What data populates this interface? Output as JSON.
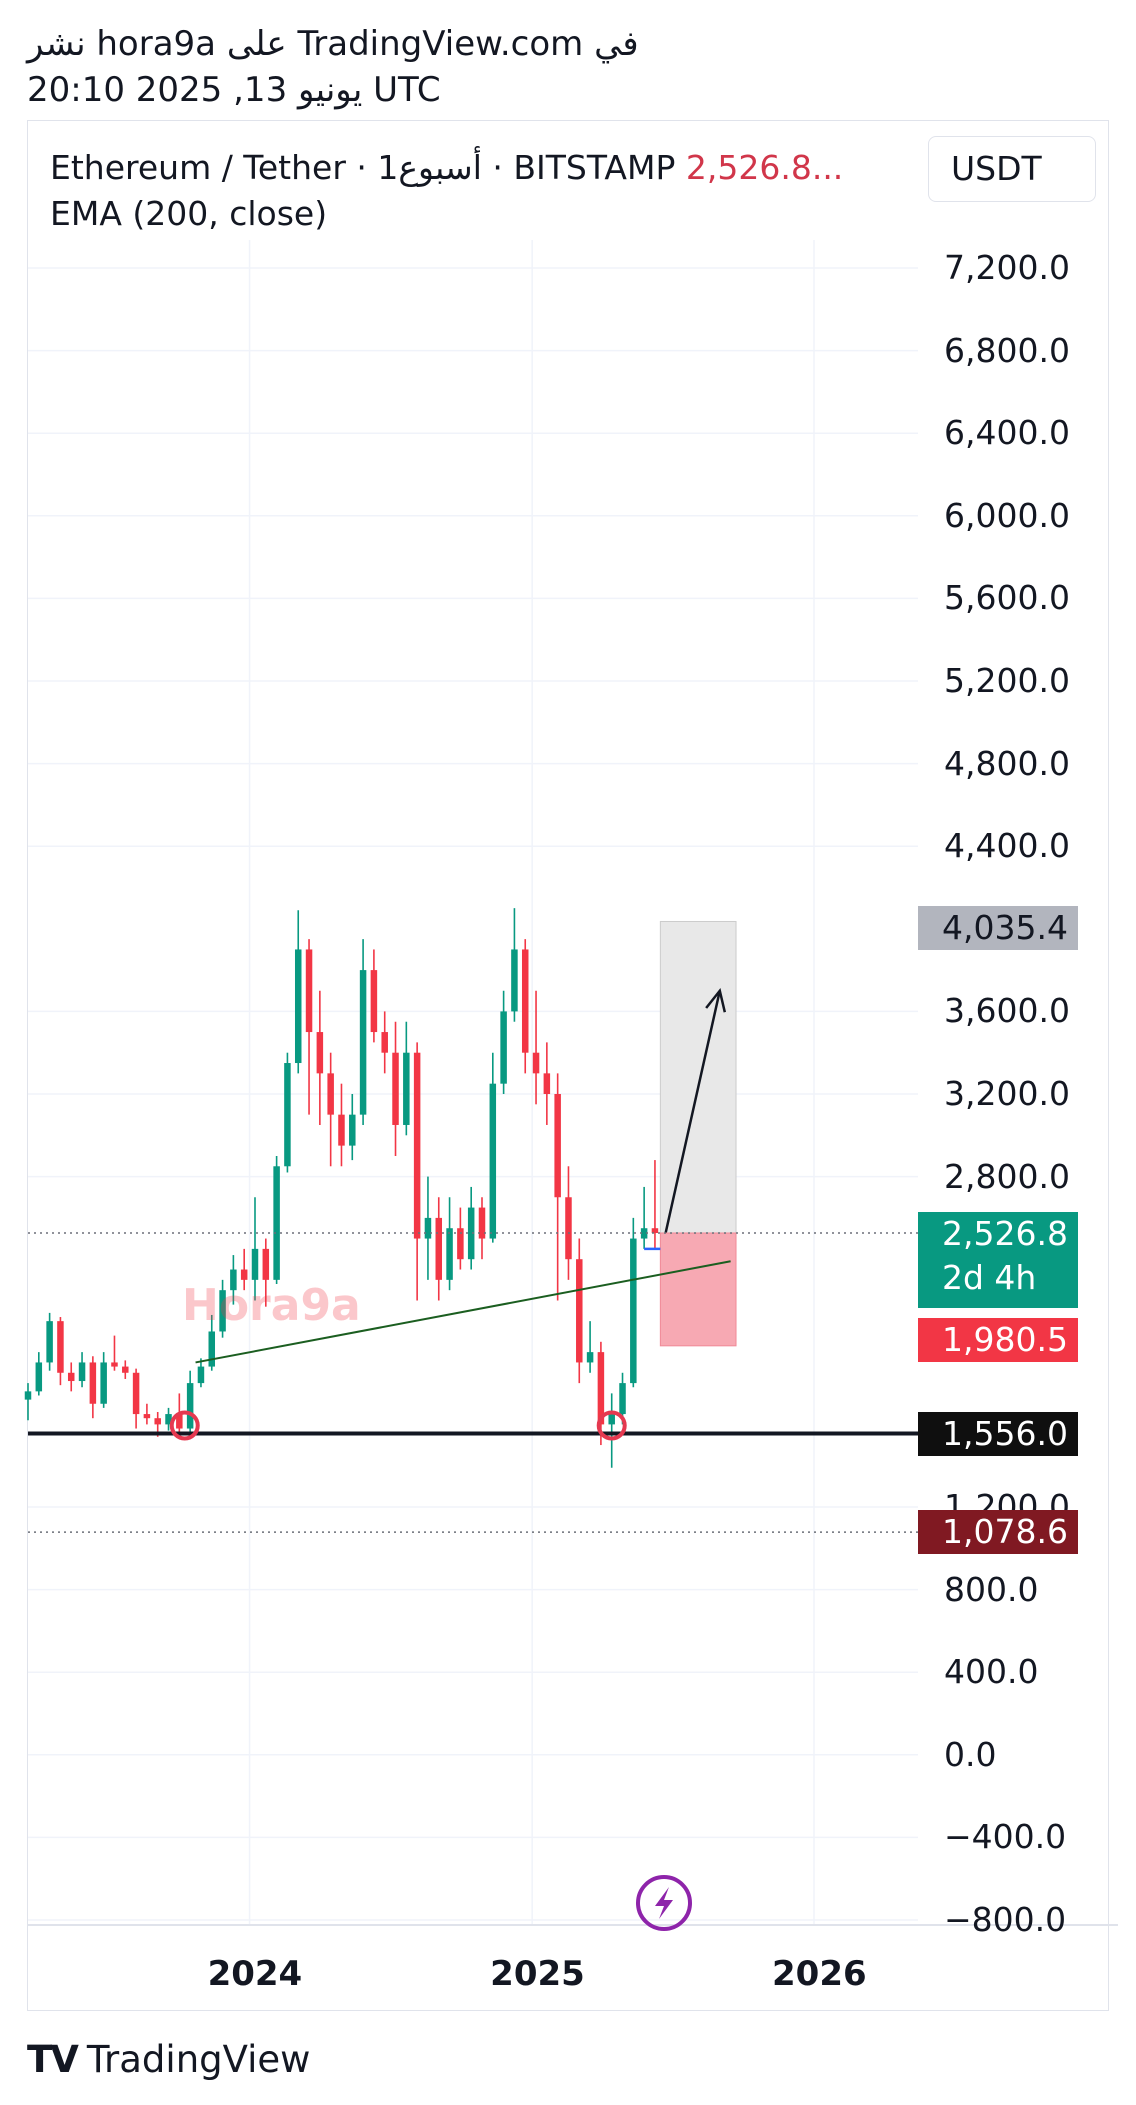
{
  "header": {
    "line1": "نشر hora9a على TradingView.com في",
    "line2": "20:10 2025 ,13 يونيو UTC"
  },
  "legend": {
    "symbol": "Ethereum / Tether · 1أسبوع · BITSTAMP",
    "price": "2,526.8...",
    "indicator": "EMA (200, close)"
  },
  "unit_selector": "USDT",
  "watermark": "Hora9a",
  "badges": {
    "target": "4,035.4",
    "current_price": "2,526.8",
    "countdown": "2d 4h",
    "stop": "1,980.5",
    "support": "1,556.0",
    "low_line": "1,078.6"
  },
  "branding": {
    "logo_mark": "TV",
    "logo_text": "TradingView"
  },
  "colors": {
    "bull": "#089981",
    "bear": "#f23645",
    "support_line": "#131722",
    "trend_line": "#1b5e20",
    "target_zone": "#e8e8e8",
    "stop_zone": "#f7a9b3",
    "ema": "#2962ff",
    "arrow": "#131722",
    "lightning": "#8e24aa"
  },
  "chart_data": {
    "type": "candlestick",
    "timeframe": "1W",
    "exchange": "BITSTAMP",
    "y_axis": {
      "ticks": [
        7200,
        6800,
        6400,
        6000,
        5600,
        5200,
        4800,
        4400,
        3600,
        3200,
        2800,
        1200,
        800,
        400,
        0,
        -400,
        -800
      ],
      "tick_labels": [
        "7,200.0",
        "6,800.0",
        "6,400.0",
        "6,000.0",
        "5,600.0",
        "5,200.0",
        "4,800.0",
        "4,400.0",
        "3,600.0",
        "3,200.0",
        "2,800.0",
        "1,200.0",
        "800.0",
        "400.0",
        "0.0",
        "−400.0",
        "−800.0"
      ],
      "range": [
        -800,
        7400
      ]
    },
    "x_axis": {
      "ticks": [
        "2024-01-01",
        "2025-01-01",
        "2026-01-01"
      ],
      "tick_labels": [
        "2024",
        "2025",
        "2026"
      ],
      "range": [
        "2023-03-20",
        "2026-07-01"
      ]
    },
    "candles": [
      {
        "t": "2023-03-20",
        "o": 1720,
        "h": 1800,
        "l": 1620,
        "c": 1760
      },
      {
        "t": "2023-04-03",
        "o": 1760,
        "h": 1950,
        "l": 1740,
        "c": 1900
      },
      {
        "t": "2023-04-17",
        "o": 1900,
        "h": 2140,
        "l": 1860,
        "c": 2100
      },
      {
        "t": "2023-05-01",
        "o": 2100,
        "h": 2120,
        "l": 1790,
        "c": 1850
      },
      {
        "t": "2023-05-15",
        "o": 1850,
        "h": 1900,
        "l": 1760,
        "c": 1810
      },
      {
        "t": "2023-05-29",
        "o": 1810,
        "h": 1950,
        "l": 1780,
        "c": 1900
      },
      {
        "t": "2023-06-12",
        "o": 1900,
        "h": 1930,
        "l": 1630,
        "c": 1700
      },
      {
        "t": "2023-06-26",
        "o": 1700,
        "h": 1950,
        "l": 1680,
        "c": 1900
      },
      {
        "t": "2023-07-10",
        "o": 1900,
        "h": 2030,
        "l": 1860,
        "c": 1880
      },
      {
        "t": "2023-07-24",
        "o": 1880,
        "h": 1910,
        "l": 1820,
        "c": 1850
      },
      {
        "t": "2023-08-07",
        "o": 1850,
        "h": 1870,
        "l": 1580,
        "c": 1650
      },
      {
        "t": "2023-08-21",
        "o": 1650,
        "h": 1700,
        "l": 1600,
        "c": 1630
      },
      {
        "t": "2023-09-04",
        "o": 1630,
        "h": 1660,
        "l": 1540,
        "c": 1600
      },
      {
        "t": "2023-09-18",
        "o": 1600,
        "h": 1680,
        "l": 1570,
        "c": 1650
      },
      {
        "t": "2023-10-02",
        "o": 1650,
        "h": 1750,
        "l": 1560,
        "c": 1580
      },
      {
        "t": "2023-10-16",
        "o": 1580,
        "h": 1860,
        "l": 1560,
        "c": 1800
      },
      {
        "t": "2023-10-30",
        "o": 1800,
        "h": 1920,
        "l": 1780,
        "c": 1880
      },
      {
        "t": "2023-11-13",
        "o": 1880,
        "h": 2130,
        "l": 1860,
        "c": 2050
      },
      {
        "t": "2023-11-27",
        "o": 2050,
        "h": 2300,
        "l": 2020,
        "c": 2250
      },
      {
        "t": "2023-12-11",
        "o": 2250,
        "h": 2420,
        "l": 2180,
        "c": 2350
      },
      {
        "t": "2023-12-25",
        "o": 2350,
        "h": 2450,
        "l": 2250,
        "c": 2300
      },
      {
        "t": "2024-01-08",
        "o": 2300,
        "h": 2700,
        "l": 2200,
        "c": 2450
      },
      {
        "t": "2024-01-22",
        "o": 2450,
        "h": 2500,
        "l": 2170,
        "c": 2300
      },
      {
        "t": "2024-02-05",
        "o": 2300,
        "h": 2900,
        "l": 2280,
        "c": 2850
      },
      {
        "t": "2024-02-19",
        "o": 2850,
        "h": 3400,
        "l": 2820,
        "c": 3350
      },
      {
        "t": "2024-03-04",
        "o": 3350,
        "h": 4090,
        "l": 3300,
        "c": 3900
      },
      {
        "t": "2024-03-18",
        "o": 3900,
        "h": 3950,
        "l": 3100,
        "c": 3500
      },
      {
        "t": "2024-04-01",
        "o": 3500,
        "h": 3700,
        "l": 3050,
        "c": 3300
      },
      {
        "t": "2024-04-15",
        "o": 3300,
        "h": 3400,
        "l": 2850,
        "c": 3100
      },
      {
        "t": "2024-04-29",
        "o": 3100,
        "h": 3250,
        "l": 2850,
        "c": 2950
      },
      {
        "t": "2024-05-13",
        "o": 2950,
        "h": 3200,
        "l": 2880,
        "c": 3100
      },
      {
        "t": "2024-05-27",
        "o": 3100,
        "h": 3950,
        "l": 3050,
        "c": 3800
      },
      {
        "t": "2024-06-10",
        "o": 3800,
        "h": 3900,
        "l": 3450,
        "c": 3500
      },
      {
        "t": "2024-06-24",
        "o": 3500,
        "h": 3600,
        "l": 3300,
        "c": 3400
      },
      {
        "t": "2024-07-08",
        "o": 3400,
        "h": 3550,
        "l": 2900,
        "c": 3050
      },
      {
        "t": "2024-07-22",
        "o": 3050,
        "h": 3550,
        "l": 3000,
        "c": 3400
      },
      {
        "t": "2024-08-05",
        "o": 3400,
        "h": 3450,
        "l": 2200,
        "c": 2500
      },
      {
        "t": "2024-08-19",
        "o": 2500,
        "h": 2800,
        "l": 2300,
        "c": 2600
      },
      {
        "t": "2024-09-02",
        "o": 2600,
        "h": 2700,
        "l": 2200,
        "c": 2300
      },
      {
        "t": "2024-09-16",
        "o": 2300,
        "h": 2700,
        "l": 2250,
        "c": 2550
      },
      {
        "t": "2024-09-30",
        "o": 2550,
        "h": 2650,
        "l": 2350,
        "c": 2400
      },
      {
        "t": "2024-10-14",
        "o": 2400,
        "h": 2750,
        "l": 2350,
        "c": 2650
      },
      {
        "t": "2024-10-28",
        "o": 2650,
        "h": 2700,
        "l": 2400,
        "c": 2500
      },
      {
        "t": "2024-11-11",
        "o": 2500,
        "h": 3400,
        "l": 2480,
        "c": 3250
      },
      {
        "t": "2024-11-25",
        "o": 3250,
        "h": 3700,
        "l": 3200,
        "c": 3600
      },
      {
        "t": "2024-12-09",
        "o": 3600,
        "h": 4100,
        "l": 3550,
        "c": 3900
      },
      {
        "t": "2024-12-23",
        "o": 3900,
        "h": 3950,
        "l": 3300,
        "c": 3400
      },
      {
        "t": "2025-01-06",
        "o": 3400,
        "h": 3700,
        "l": 3150,
        "c": 3300
      },
      {
        "t": "2025-01-20",
        "o": 3300,
        "h": 3450,
        "l": 3050,
        "c": 3200
      },
      {
        "t": "2025-02-03",
        "o": 3200,
        "h": 3300,
        "l": 2200,
        "c": 2700
      },
      {
        "t": "2025-02-17",
        "o": 2700,
        "h": 2850,
        "l": 2300,
        "c": 2400
      },
      {
        "t": "2025-03-03",
        "o": 2400,
        "h": 2500,
        "l": 1800,
        "c": 1900
      },
      {
        "t": "2025-03-17",
        "o": 1900,
        "h": 2100,
        "l": 1850,
        "c": 1950
      },
      {
        "t": "2025-03-31",
        "o": 1950,
        "h": 2000,
        "l": 1500,
        "c": 1600
      },
      {
        "t": "2025-04-14",
        "o": 1600,
        "h": 1750,
        "l": 1390,
        "c": 1650
      },
      {
        "t": "2025-04-28",
        "o": 1650,
        "h": 1850,
        "l": 1600,
        "c": 1800
      },
      {
        "t": "2025-05-12",
        "o": 1800,
        "h": 2600,
        "l": 1780,
        "c": 2500
      },
      {
        "t": "2025-05-26",
        "o": 2500,
        "h": 2750,
        "l": 2450,
        "c": 2550
      },
      {
        "t": "2025-06-09",
        "o": 2550,
        "h": 2880,
        "l": 2450,
        "c": 2526.8
      }
    ],
    "ema_200_close": {
      "start": "2025-05-26",
      "end": "2025-06-16",
      "value": 2450
    },
    "annotations": {
      "support_level": 1556.0,
      "low_level": 1078.6,
      "current_price": 2526.8,
      "entry": 2526.8,
      "target": 4035.4,
      "stop": 1980.5,
      "trend_line": [
        {
          "t": "2023-10-23",
          "v": 1900
        },
        {
          "t": "2025-09-15",
          "v": 2390
        }
      ],
      "arrow": [
        {
          "t": "2025-06-23",
          "v": 2530
        },
        {
          "t": "2025-09-01",
          "v": 3700
        }
      ],
      "marked_lows": [
        {
          "t": "2023-10-09",
          "v": 1556
        },
        {
          "t": "2025-04-14",
          "v": 1556
        }
      ],
      "position_zone": {
        "start": "2025-06-16",
        "end": "2025-09-22"
      }
    }
  }
}
